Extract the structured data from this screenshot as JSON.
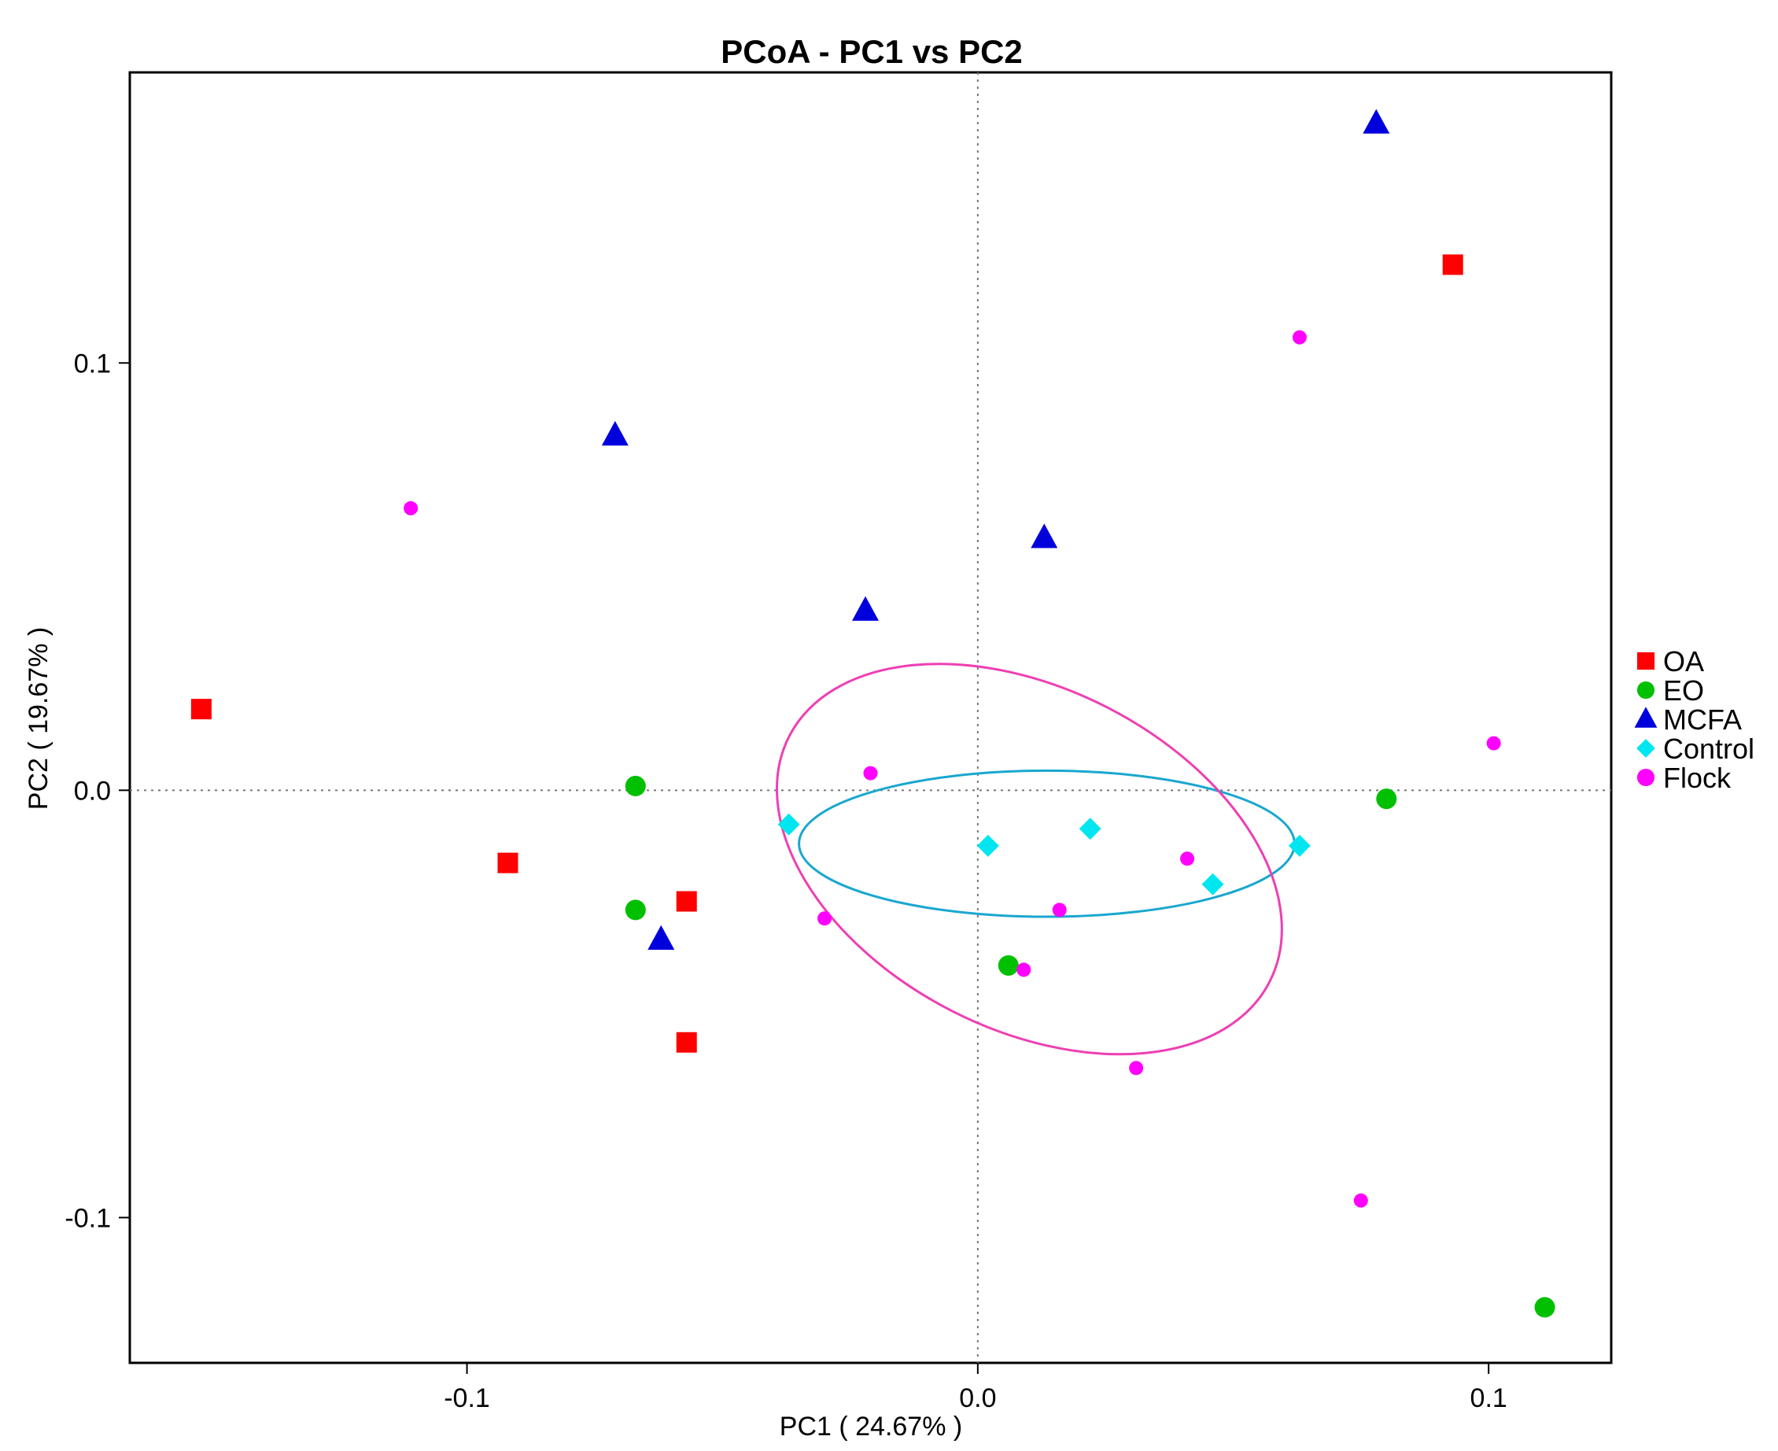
{
  "chart_data": {
    "type": "scatter",
    "title": "PCoA - PC1 vs PC2",
    "xlabel": "PC1 ( 24.67% )",
    "ylabel": "PC2 ( 19.67% )",
    "xlim": [
      -0.166,
      0.124
    ],
    "ylim": [
      -0.134,
      0.168
    ],
    "xticks": [
      {
        "value": -0.1,
        "label": "-0.1"
      },
      {
        "value": 0.0,
        "label": "0.0"
      },
      {
        "value": 0.1,
        "label": "0.1"
      }
    ],
    "yticks": [
      {
        "value": -0.1,
        "label": "-0.1"
      },
      {
        "value": 0.0,
        "label": "0.0"
      },
      {
        "value": 0.1,
        "label": "0.1"
      }
    ],
    "reference_lines": {
      "x": 0.0,
      "y": 0.0,
      "style": "dotted"
    },
    "grid": false,
    "legend_position": "right",
    "series": [
      {
        "name": "OA",
        "marker": "square",
        "color": "#ff0000",
        "points": [
          [
            -0.152,
            0.019
          ],
          [
            -0.092,
            -0.017
          ],
          [
            -0.057,
            -0.026
          ],
          [
            -0.057,
            -0.059
          ],
          [
            0.093,
            0.123
          ]
        ]
      },
      {
        "name": "EO",
        "marker": "circle",
        "color": "#00c000",
        "points": [
          [
            -0.067,
            0.001
          ],
          [
            -0.067,
            -0.028
          ],
          [
            0.006,
            -0.041
          ],
          [
            0.08,
            -0.002
          ],
          [
            0.111,
            -0.121
          ]
        ]
      },
      {
        "name": "MCFA",
        "marker": "triangle",
        "color": "#0000dd",
        "points": [
          [
            -0.071,
            0.083
          ],
          [
            -0.022,
            0.042
          ],
          [
            0.013,
            0.059
          ],
          [
            0.078,
            0.156
          ],
          [
            -0.062,
            -0.035
          ]
        ]
      },
      {
        "name": "Control",
        "marker": "diamond",
        "color": "#00e6f0",
        "points": [
          [
            -0.037,
            -0.008
          ],
          [
            0.002,
            -0.013
          ],
          [
            0.022,
            -0.009
          ],
          [
            0.046,
            -0.022
          ],
          [
            0.063,
            -0.013
          ]
        ]
      },
      {
        "name": "Flock",
        "marker": "small-circle",
        "color": "#ff00ff",
        "points": [
          [
            -0.111,
            0.066
          ],
          [
            -0.021,
            0.004
          ],
          [
            -0.03,
            -0.03
          ],
          [
            0.016,
            -0.028
          ],
          [
            0.041,
            -0.016
          ],
          [
            0.009,
            -0.042
          ],
          [
            0.031,
            -0.065
          ],
          [
            0.063,
            0.106
          ],
          [
            0.101,
            0.011
          ],
          [
            0.075,
            -0.096
          ]
        ]
      }
    ],
    "ellipses": [
      {
        "group": "Control",
        "color": "#1aa7cf",
        "center": [
          0.0135,
          -0.0125
        ],
        "rx": 0.0485,
        "ry": 0.0171,
        "rotation_deg": 0
      },
      {
        "group": "Flock",
        "color": "#ee3fb3",
        "center": [
          0.0101,
          -0.0161
        ],
        "rx": 0.0528,
        "ry": 0.0399,
        "rotation_deg": 27
      }
    ]
  }
}
